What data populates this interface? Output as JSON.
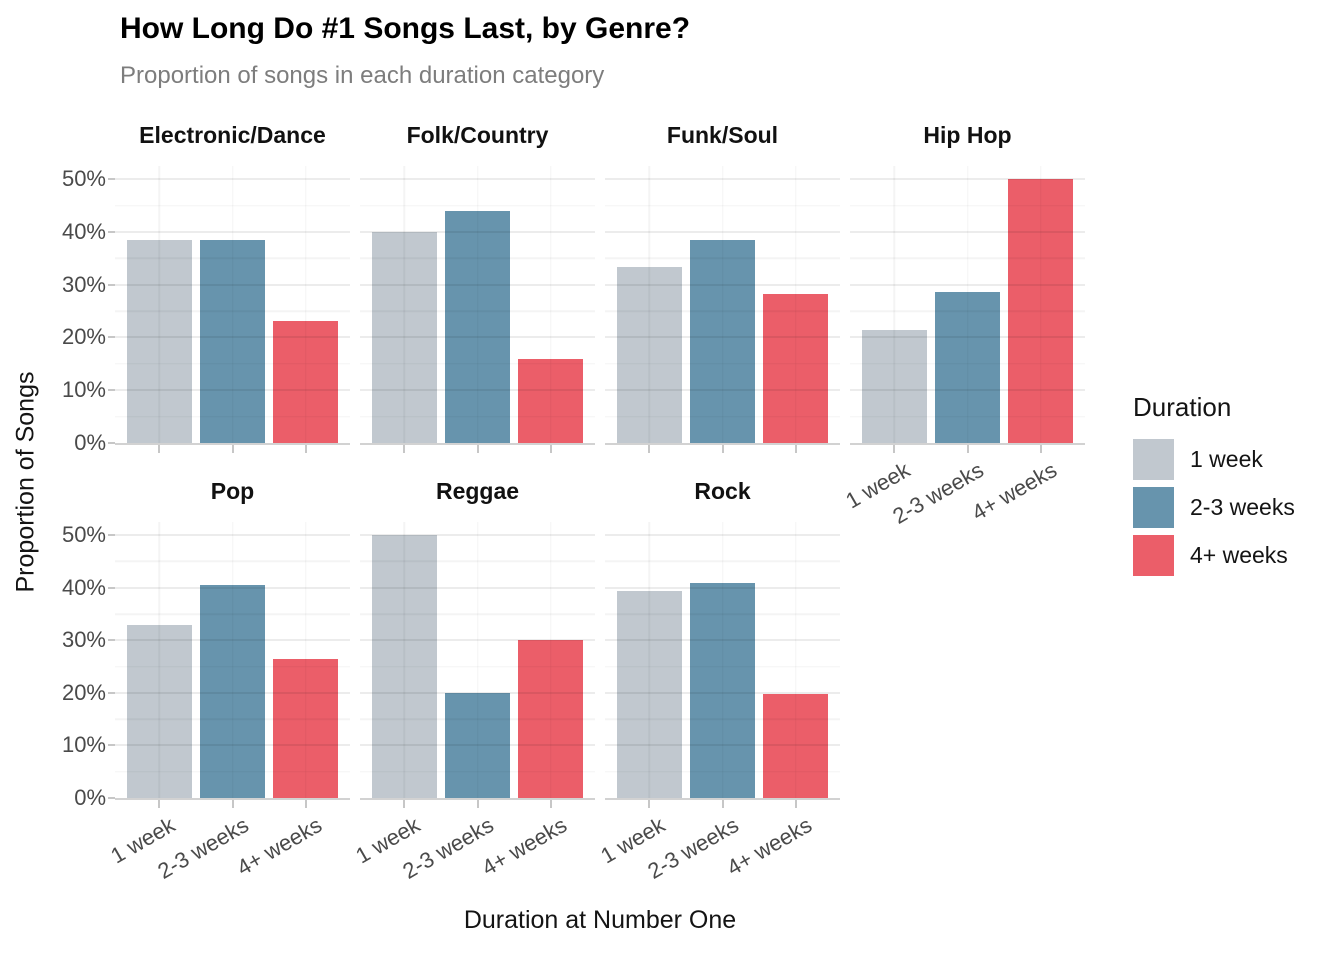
{
  "chart_data": {
    "type": "bar",
    "title": "How Long Do #1 Songs Last, by Genre?",
    "subtitle": "Proportion of songs in each duration category",
    "xlabel": "Duration at Number One",
    "ylabel": "Proportion of Songs",
    "categories": [
      "1 week",
      "2-3 weeks",
      "4+ weeks"
    ],
    "facets": [
      {
        "name": "Electronic/Dance",
        "values": [
          38.5,
          38.5,
          23.1
        ]
      },
      {
        "name": "Folk/Country",
        "values": [
          40.0,
          44.0,
          16.0
        ]
      },
      {
        "name": "Funk/Soul",
        "values": [
          33.3,
          38.5,
          28.2
        ]
      },
      {
        "name": "Hip Hop",
        "values": [
          21.4,
          28.6,
          50.0
        ]
      },
      {
        "name": "Pop",
        "values": [
          33.0,
          40.5,
          26.5
        ]
      },
      {
        "name": "Reggae",
        "values": [
          50.0,
          20.0,
          30.0
        ]
      },
      {
        "name": "Rock",
        "values": [
          39.4,
          40.9,
          19.7
        ]
      }
    ],
    "y_ticks": [
      "0%",
      "10%",
      "20%",
      "30%",
      "40%",
      "50%"
    ],
    "y_tick_values": [
      0,
      10,
      20,
      30,
      40,
      50
    ],
    "ylim": [
      0,
      52.5
    ],
    "grid": true,
    "legend": {
      "title": "Duration",
      "position": "right",
      "items": [
        {
          "label": "1 week",
          "color": "#c1c8cf"
        },
        {
          "label": "2-3 weeks",
          "color": "#6794ad"
        },
        {
          "label": "4+ weeks",
          "color": "#eb5e69"
        }
      ]
    }
  }
}
